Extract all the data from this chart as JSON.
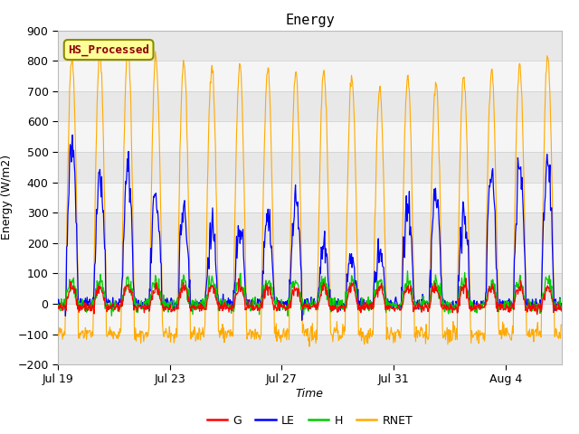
{
  "title": "Energy",
  "xlabel": "Time",
  "ylabel": "Energy (W/m2)",
  "ylim": [
    -200,
    900
  ],
  "yticks": [
    -200,
    -100,
    0,
    100,
    200,
    300,
    400,
    500,
    600,
    700,
    800,
    900
  ],
  "xtick_labels": [
    "Jul 19",
    "Jul 23",
    "Jul 27",
    "Jul 31",
    "Aug 4"
  ],
  "xtick_positions": [
    0,
    4,
    8,
    12,
    16
  ],
  "legend_entries": [
    "G",
    "LE",
    "H",
    "RNET"
  ],
  "line_colors": {
    "G": "#ff0000",
    "LE": "#0000ff",
    "H": "#00cc00",
    "RNET": "#ffaa00"
  },
  "annotation_text": "HS_Processed",
  "annotation_color": "#8b0000",
  "annotation_bg": "#ffff99",
  "annotation_edge": "#8b8b00",
  "plot_bg_color": "#ffffff",
  "stripe_color_dark": "#e8e8e8",
  "stripe_color_light": "#f5f5f5",
  "n_days": 18,
  "seed": 42,
  "pts_per_day": 48
}
